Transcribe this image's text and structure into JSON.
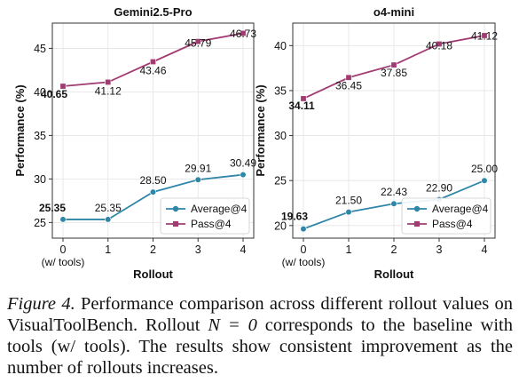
{
  "chart_data": [
    {
      "type": "line",
      "title": "Gemini2.5-Pro",
      "xlabel": "Rollout",
      "ylabel": "Performance (%)",
      "x": [
        0,
        1,
        2,
        3,
        4
      ],
      "x_tick_labels": [
        "0",
        "1",
        "2",
        "3",
        "4"
      ],
      "x_tick_sublabel": "(w/ tools)",
      "y_ticks": [
        25,
        30,
        35,
        40,
        45
      ],
      "ylim": [
        23.2,
        47.9
      ],
      "grid": true,
      "legend_position": "lower-right",
      "series": [
        {
          "name": "Average@4",
          "values": [
            25.35,
            25.35,
            28.5,
            29.91,
            30.49
          ],
          "labels": [
            "25.35",
            "25.35",
            "28.50",
            "29.91",
            "30.49"
          ],
          "color": "#2E86A8",
          "marker": "circle"
        },
        {
          "name": "Pass@4",
          "values": [
            40.65,
            41.12,
            43.46,
            45.79,
            46.73
          ],
          "labels": [
            "40.65",
            "41.12",
            "43.46",
            "45.79",
            "46.73"
          ],
          "color": "#A23B72",
          "marker": "square"
        }
      ]
    },
    {
      "type": "line",
      "title": "o4-mini",
      "xlabel": "Rollout",
      "ylabel": "Performance (%)",
      "x": [
        0,
        1,
        2,
        3,
        4
      ],
      "x_tick_labels": [
        "0",
        "1",
        "2",
        "3",
        "4"
      ],
      "x_tick_sublabel": "(w/ tools)",
      "y_ticks": [
        20,
        25,
        30,
        35,
        40
      ],
      "ylim": [
        18.6,
        42.5
      ],
      "grid": true,
      "legend_position": "lower-right",
      "series": [
        {
          "name": "Average@4",
          "values": [
            19.63,
            21.5,
            22.43,
            22.9,
            25.0
          ],
          "labels": [
            "19.63",
            "21.50",
            "22.43",
            "22.90",
            "25.00"
          ],
          "color": "#2E86A8",
          "marker": "circle"
        },
        {
          "name": "Pass@4",
          "values": [
            34.11,
            36.45,
            37.85,
            40.18,
            41.12
          ],
          "labels": [
            "34.11",
            "36.45",
            "37.85",
            "40.18",
            "41.12"
          ],
          "color": "#A23B72",
          "marker": "square"
        }
      ]
    }
  ],
  "caption": {
    "label": "Figure 4.",
    "text_before": " Performance comparison across different rollout values on VisualToolBench. Rollout ",
    "math": "N = 0",
    "text_after": " corresponds to the baseline with tools (w/ tools). The results show consistent improvement as the number of rollouts increases."
  }
}
